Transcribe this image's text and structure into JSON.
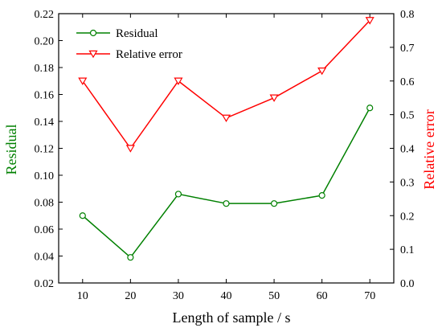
{
  "chart_data": {
    "type": "line",
    "xlabel": "Length of sample / s",
    "ylabel_left": "Residual",
    "ylabel_right": "Relative error",
    "x": [
      10,
      20,
      30,
      40,
      50,
      60,
      70
    ],
    "xlim": [
      5,
      75
    ],
    "ylim_left": [
      0.02,
      0.22
    ],
    "ylim_right": [
      0.0,
      0.8
    ],
    "xticks": [
      "10",
      "20",
      "30",
      "40",
      "50",
      "60",
      "70"
    ],
    "yticks_left": [
      "0.02",
      "0.04",
      "0.06",
      "0.08",
      "0.10",
      "0.12",
      "0.14",
      "0.16",
      "0.18",
      "0.20",
      "0.22"
    ],
    "yticks_right": [
      "0.0",
      "0.1",
      "0.2",
      "0.3",
      "0.4",
      "0.5",
      "0.6",
      "0.7",
      "0.8"
    ],
    "legend_position": "top-left",
    "grid": false,
    "series": [
      {
        "name": "Residual",
        "axis": "left",
        "color": "#008000",
        "marker": "circle",
        "values": [
          0.07,
          0.039,
          0.086,
          0.079,
          0.079,
          0.085,
          0.15
        ]
      },
      {
        "name": "Relative error",
        "axis": "right",
        "color": "#ff0000",
        "marker": "triangle-down",
        "values": [
          0.6,
          0.4,
          0.6,
          0.49,
          0.55,
          0.63,
          0.78
        ]
      }
    ]
  }
}
